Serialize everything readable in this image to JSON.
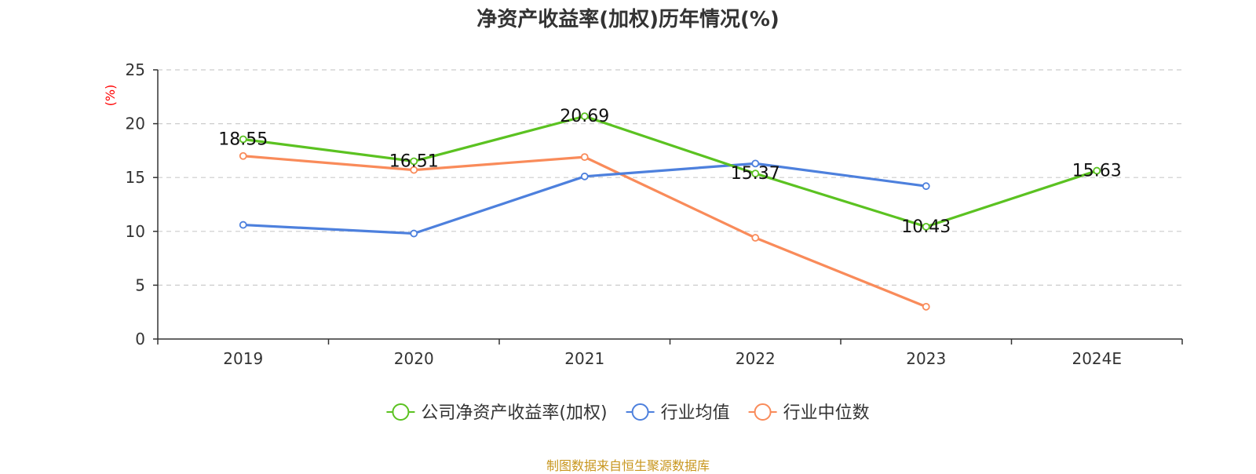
{
  "chart_data": {
    "type": "line",
    "title": "净资产收益率(加权)历年情况(%)",
    "ylabel": "(%)",
    "categories": [
      "2019",
      "2020",
      "2021",
      "2022",
      "2023",
      "2024E"
    ],
    "ylim": [
      0,
      25
    ],
    "yticks": [
      0,
      5,
      10,
      15,
      20,
      25
    ],
    "grid": true,
    "legend_position": "bottom-center",
    "series": [
      {
        "name": "公司净资产收益率(加权)",
        "color": "#5bc221",
        "values": [
          18.55,
          16.51,
          20.69,
          15.37,
          10.43,
          15.63
        ],
        "labels": [
          "18.55",
          "16.51",
          "20.69",
          "15.37",
          "10.43",
          "15.63"
        ]
      },
      {
        "name": "行业均值",
        "color": "#4d80dd",
        "values": [
          10.6,
          9.8,
          15.1,
          16.3,
          14.2,
          null
        ]
      },
      {
        "name": "行业中位数",
        "color": "#f98b5a",
        "values": [
          17.0,
          15.7,
          16.9,
          9.4,
          3.0,
          null
        ]
      }
    ]
  },
  "source_note": "制图数据来自恒生聚源数据库",
  "colors": {
    "axis": "#333333",
    "grid": "#cccccc",
    "unit_label": "#ff0000"
  }
}
